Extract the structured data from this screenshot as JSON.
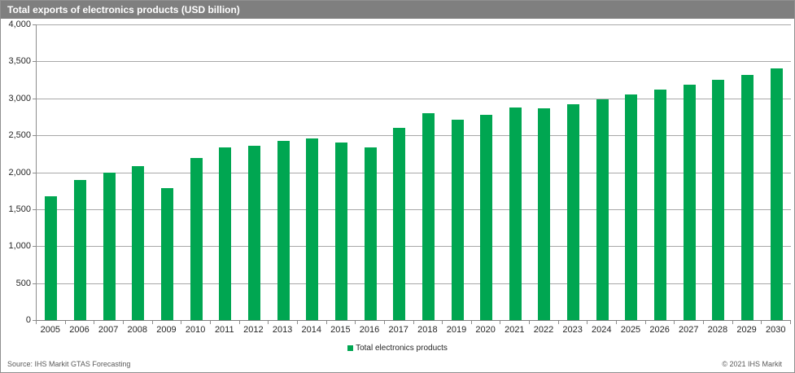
{
  "header": {
    "title": "Total exports of electronics products (USD billion)"
  },
  "chart_data": {
    "type": "bar",
    "title": "Total exports of electronics products (USD billion)",
    "categories": [
      "2005",
      "2006",
      "2007",
      "2008",
      "2009",
      "2010",
      "2011",
      "2012",
      "2013",
      "2014",
      "2015",
      "2016",
      "2017",
      "2018",
      "2019",
      "2020",
      "2021",
      "2022",
      "2023",
      "2024",
      "2025",
      "2026",
      "2027",
      "2028",
      "2029",
      "2030"
    ],
    "values": [
      1670,
      1900,
      2000,
      2080,
      1780,
      2190,
      2340,
      2360,
      2420,
      2460,
      2400,
      2340,
      2600,
      2800,
      2710,
      2780,
      2880,
      2860,
      2920,
      2990,
      3050,
      3120,
      3180,
      3250,
      3320,
      3400
    ],
    "series_name": "Total electronics products",
    "xlabel": "",
    "ylabel": "",
    "ylim": [
      0,
      4000
    ],
    "yticks": [
      0,
      500,
      1000,
      1500,
      2000,
      2500,
      3000,
      3500,
      4000
    ],
    "grid": "horizontal",
    "legend_position": "bottom-center",
    "bar_color": "#00A651"
  },
  "legend": {
    "label": "Total electronics products"
  },
  "footer": {
    "source": "Source: IHS Markit GTAS Forecasting",
    "copyright": "© 2021 IHS Markit"
  },
  "colors": {
    "bar": "#00A651",
    "header_bg": "#7F7F7F",
    "gridline": "#A8A8A8",
    "axis": "#808080",
    "text": "#262626",
    "footer_text": "#595959",
    "border": "#909090"
  }
}
